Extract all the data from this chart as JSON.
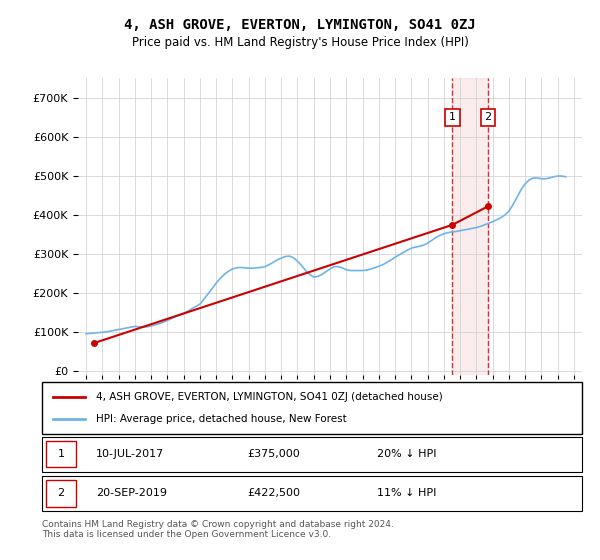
{
  "title": "4, ASH GROVE, EVERTON, LYMINGTON, SO41 0ZJ",
  "subtitle": "Price paid vs. HM Land Registry's House Price Index (HPI)",
  "yticks": [
    0,
    100000,
    200000,
    300000,
    400000,
    500000,
    600000,
    700000
  ],
  "xlim_start": 1994.5,
  "xlim_end": 2025.5,
  "ylim": [
    -10000,
    750000
  ],
  "transaction1_date": 2017.53,
  "transaction1_price": 375000,
  "transaction1_label": "1",
  "transaction2_date": 2019.72,
  "transaction2_price": 422500,
  "transaction2_label": "2",
  "hpi_color": "#6eb4e8",
  "price_color": "#cc0000",
  "marker_box_color": "#cc0000",
  "grid_color": "#cccccc",
  "background_color": "#ffffff",
  "legend_label_price": "4, ASH GROVE, EVERTON, LYMINGTON, SO41 0ZJ (detached house)",
  "legend_label_hpi": "HPI: Average price, detached house, New Forest",
  "footnote": "Contains HM Land Registry data © Crown copyright and database right 2024.\nThis data is licensed under the Open Government Licence v3.0.",
  "transaction1_date_str": "10-JUL-2017",
  "transaction1_price_str": "£375,000",
  "transaction1_hpi_str": "20% ↓ HPI",
  "transaction2_date_str": "20-SEP-2019",
  "transaction2_price_str": "£422,500",
  "transaction2_hpi_str": "11% ↓ HPI",
  "hpi_years": [
    1995,
    1995.25,
    1995.5,
    1995.75,
    1996,
    1996.25,
    1996.5,
    1996.75,
    1997,
    1997.25,
    1997.5,
    1997.75,
    1998,
    1998.25,
    1998.5,
    1998.75,
    1999,
    1999.25,
    1999.5,
    1999.75,
    2000,
    2000.25,
    2000.5,
    2000.75,
    2001,
    2001.25,
    2001.5,
    2001.75,
    2002,
    2002.25,
    2002.5,
    2002.75,
    2003,
    2003.25,
    2003.5,
    2003.75,
    2004,
    2004.25,
    2004.5,
    2004.75,
    2005,
    2005.25,
    2005.5,
    2005.75,
    2006,
    2006.25,
    2006.5,
    2006.75,
    2007,
    2007.25,
    2007.5,
    2007.75,
    2008,
    2008.25,
    2008.5,
    2008.75,
    2009,
    2009.25,
    2009.5,
    2009.75,
    2010,
    2010.25,
    2010.5,
    2010.75,
    2011,
    2011.25,
    2011.5,
    2011.75,
    2012,
    2012.25,
    2012.5,
    2012.75,
    2013,
    2013.25,
    2013.5,
    2013.75,
    2014,
    2014.25,
    2014.5,
    2014.75,
    2015,
    2015.25,
    2015.5,
    2015.75,
    2016,
    2016.25,
    2016.5,
    2016.75,
    2017,
    2017.25,
    2017.5,
    2017.75,
    2018,
    2018.25,
    2018.5,
    2018.75,
    2019,
    2019.25,
    2019.5,
    2019.75,
    2020,
    2020.25,
    2020.5,
    2020.75,
    2021,
    2021.25,
    2021.5,
    2021.75,
    2022,
    2022.25,
    2022.5,
    2022.75,
    2023,
    2023.25,
    2023.5,
    2023.75,
    2024,
    2024.25,
    2024.5
  ],
  "hpi_values": [
    96000,
    97000,
    98000,
    99000,
    100000,
    101000,
    103000,
    105000,
    107000,
    109000,
    111000,
    113000,
    115000,
    114000,
    113000,
    114000,
    116000,
    119000,
    122000,
    126000,
    130000,
    135000,
    140000,
    144000,
    148000,
    154000,
    160000,
    166000,
    172000,
    185000,
    198000,
    212000,
    226000,
    238000,
    248000,
    256000,
    262000,
    265000,
    266000,
    265000,
    264000,
    264000,
    265000,
    266000,
    268000,
    273000,
    279000,
    285000,
    290000,
    294000,
    295000,
    291000,
    282000,
    271000,
    258000,
    248000,
    241000,
    243000,
    248000,
    255000,
    262000,
    268000,
    268000,
    265000,
    260000,
    258000,
    258000,
    258000,
    258000,
    259000,
    262000,
    265000,
    269000,
    273000,
    279000,
    285000,
    292000,
    298000,
    304000,
    310000,
    315000,
    318000,
    320000,
    323000,
    328000,
    335000,
    342000,
    348000,
    352000,
    355000,
    357000,
    358000,
    360000,
    362000,
    364000,
    366000,
    368000,
    371000,
    375000,
    379000,
    383000,
    388000,
    393000,
    400000,
    410000,
    426000,
    445000,
    465000,
    480000,
    490000,
    495000,
    495000,
    493000,
    493000,
    495000,
    498000,
    500000,
    500000,
    498000
  ],
  "price_years": [
    1995.5,
    2017.53,
    2019.72
  ],
  "price_values": [
    72500,
    375000,
    422500
  ]
}
